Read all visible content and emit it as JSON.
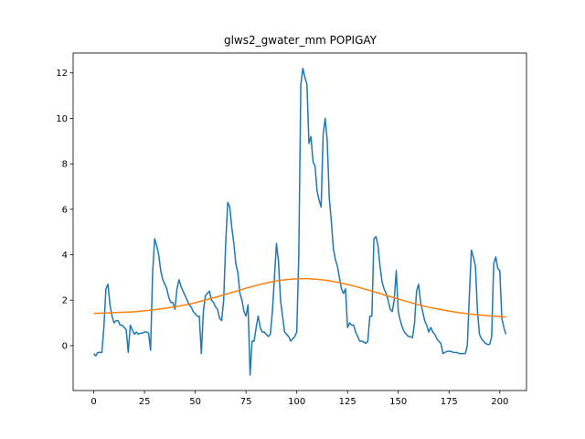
{
  "chart_data": {
    "type": "line",
    "title": "glws2_gwater_mm POPIGAY",
    "xlim": [
      -10.15,
      213.15
    ],
    "xticks": [
      0,
      25,
      50,
      75,
      100,
      125,
      150,
      175,
      200
    ],
    "ylim": [
      -1.975,
      12.875
    ],
    "yticks": [
      0,
      2,
      4,
      6,
      8,
      10,
      12
    ],
    "series": [
      {
        "color": "#1f77b4",
        "x": [
          0,
          1,
          2,
          3,
          4,
          5,
          6,
          7,
          8,
          9,
          10,
          11,
          12,
          13,
          14,
          15,
          16,
          17,
          18,
          19,
          20,
          21,
          22,
          23,
          24,
          25,
          26,
          27,
          28,
          29,
          30,
          31,
          32,
          33,
          34,
          35,
          36,
          37,
          38,
          39,
          40,
          41,
          42,
          43,
          44,
          45,
          46,
          47,
          48,
          49,
          50,
          51,
          52,
          53,
          54,
          55,
          56,
          57,
          58,
          59,
          60,
          61,
          62,
          63,
          64,
          65,
          66,
          67,
          68,
          69,
          70,
          71,
          72,
          73,
          74,
          75,
          76,
          77,
          78,
          79,
          80,
          81,
          82,
          83,
          84,
          85,
          86,
          87,
          88,
          89,
          90,
          91,
          92,
          93,
          94,
          95,
          96,
          97,
          98,
          99,
          100,
          101,
          102,
          103,
          104,
          105,
          106,
          107,
          108,
          109,
          110,
          111,
          112,
          113,
          114,
          115,
          116,
          117,
          118,
          119,
          120,
          121,
          122,
          123,
          124,
          125,
          126,
          127,
          128,
          129,
          130,
          131,
          132,
          133,
          134,
          135,
          136,
          137,
          138,
          139,
          140,
          141,
          142,
          143,
          144,
          145,
          146,
          147,
          148,
          149,
          150,
          151,
          152,
          153,
          154,
          155,
          156,
          157,
          158,
          159,
          160,
          161,
          162,
          163,
          164,
          165,
          166,
          167,
          168,
          169,
          170,
          171,
          172,
          173,
          174,
          175,
          176,
          177,
          178,
          179,
          180,
          181,
          182,
          183,
          184,
          185,
          186,
          187,
          188,
          189,
          190,
          191,
          192,
          193,
          194,
          195,
          196,
          197,
          198,
          199,
          200,
          201,
          202,
          203
        ],
        "values": [
          -0.35,
          -0.45,
          -0.3,
          -0.3,
          -0.3,
          0.8,
          2.5,
          2.7,
          1.8,
          1.3,
          1.0,
          1.1,
          1.1,
          0.9,
          0.9,
          0.8,
          0.7,
          -0.3,
          0.9,
          0.7,
          0.5,
          0.6,
          0.5,
          0.55,
          0.55,
          0.6,
          0.6,
          0.55,
          -0.2,
          3.2,
          4.7,
          4.4,
          4.0,
          3.3,
          2.9,
          2.7,
          2.5,
          2.1,
          1.9,
          1.9,
          1.6,
          2.5,
          2.9,
          2.6,
          2.4,
          2.2,
          2.0,
          1.8,
          1.7,
          1.5,
          1.4,
          1.3,
          1.3,
          -0.35,
          1.5,
          2.2,
          2.3,
          2.4,
          2.0,
          1.9,
          1.7,
          1.6,
          1.2,
          1.1,
          2.0,
          4.5,
          6.3,
          6.1,
          5.2,
          4.5,
          3.6,
          3.2,
          2.3,
          2.0,
          1.5,
          1.3,
          1.8,
          -1.3,
          0.2,
          0.2,
          0.8,
          1.3,
          0.8,
          0.6,
          0.6,
          0.5,
          0.4,
          0.5,
          1.5,
          3.0,
          4.5,
          3.7,
          2.0,
          1.3,
          0.6,
          0.5,
          0.4,
          0.2,
          0.3,
          0.4,
          0.6,
          4.0,
          11.5,
          12.2,
          11.8,
          11.5,
          8.9,
          9.2,
          8.1,
          7.9,
          6.8,
          6.4,
          6.1,
          9.3,
          10.0,
          9.0,
          6.5,
          5.5,
          4.3,
          3.8,
          3.5,
          3.0,
          2.5,
          2.3,
          2.5,
          0.8,
          1.0,
          0.9,
          0.9,
          0.6,
          0.4,
          0.2,
          0.2,
          0.15,
          0.1,
          0.2,
          1.3,
          1.3,
          4.7,
          4.8,
          4.4,
          3.5,
          2.8,
          2.5,
          2.3,
          2.0,
          1.6,
          1.5,
          2.0,
          3.3,
          1.5,
          1.1,
          0.8,
          0.6,
          0.5,
          0.4,
          0.4,
          0.35,
          1.0,
          2.4,
          2.7,
          1.9,
          1.5,
          1.1,
          0.9,
          0.6,
          0.8,
          0.6,
          0.5,
          0.3,
          0.2,
          0.1,
          -0.35,
          -0.3,
          -0.25,
          -0.25,
          -0.25,
          -0.3,
          -0.3,
          -0.3,
          -0.35,
          -0.35,
          -0.35,
          -0.35,
          0.0,
          2.2,
          4.2,
          3.9,
          3.5,
          1.5,
          0.5,
          0.3,
          0.2,
          0.1,
          0.05,
          0.05,
          0.4,
          3.6,
          3.9,
          3.4,
          3.3,
          1.2,
          0.8,
          0.5
        ]
      },
      {
        "color": "#ff7f0e",
        "x": [
          0,
          5,
          10,
          15,
          20,
          25,
          30,
          35,
          40,
          45,
          50,
          55,
          60,
          65,
          70,
          75,
          80,
          85,
          90,
          95,
          100,
          103,
          105,
          110,
          115,
          120,
          125,
          130,
          135,
          140,
          145,
          150,
          155,
          160,
          165,
          170,
          175,
          180,
          185,
          190,
          195,
          200,
          203
        ],
        "values": [
          1.42,
          1.43,
          1.45,
          1.47,
          1.49,
          1.53,
          1.58,
          1.64,
          1.71,
          1.79,
          1.89,
          2.01,
          2.13,
          2.26,
          2.39,
          2.53,
          2.65,
          2.76,
          2.85,
          2.91,
          2.94,
          2.95,
          2.95,
          2.92,
          2.87,
          2.79,
          2.69,
          2.58,
          2.45,
          2.32,
          2.18,
          2.05,
          1.92,
          1.8,
          1.69,
          1.6,
          1.52,
          1.45,
          1.39,
          1.35,
          1.31,
          1.28,
          1.26
        ]
      }
    ]
  }
}
